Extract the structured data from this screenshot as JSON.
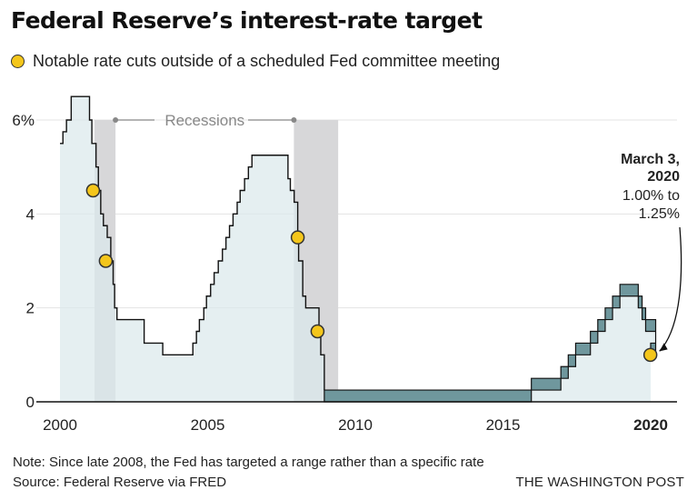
{
  "title": "Federal Reserve’s interest-rate target",
  "legend": {
    "label": "Notable rate cuts outside of a scheduled Fed committee meeting"
  },
  "note": "Note: Since late 2008, the Fed has targeted a range rather than a specific rate",
  "source": "Source: Federal Reserve via FRED",
  "credit": "THE WASHINGTON POST",
  "colors": {
    "area": "#dbe9ec",
    "range_band": "#6f979d",
    "recession": "#d7d7d9",
    "line": "#111111",
    "dot_fill": "#f4c61b",
    "grid": "#e3e3e3",
    "muted_text": "#888888"
  },
  "chart_data": {
    "type": "line",
    "title": "Federal Reserve’s interest-rate target",
    "xlim": [
      1999.8,
      2020.7
    ],
    "ylim": [
      0,
      6.5
    ],
    "x_ticks": [
      {
        "value": 2000,
        "label": "2000"
      },
      {
        "value": 2005,
        "label": "2005"
      },
      {
        "value": 2010,
        "label": "2010"
      },
      {
        "value": 2015,
        "label": "2015"
      },
      {
        "value": 2020,
        "label": "2020",
        "bold": true
      }
    ],
    "y_ticks": [
      {
        "value": 0,
        "label": "0"
      },
      {
        "value": 2,
        "label": "2"
      },
      {
        "value": 4,
        "label": "4"
      },
      {
        "value": 6,
        "label": "6%"
      }
    ],
    "grid": true,
    "recession_label": "Recessions",
    "recessions": [
      [
        2001.17,
        2001.88
      ],
      [
        2007.92,
        2009.42
      ]
    ],
    "single_rate": [
      [
        2000.0,
        5.5
      ],
      [
        2000.1,
        5.75
      ],
      [
        2000.22,
        6.0
      ],
      [
        2000.38,
        6.5
      ],
      [
        2001.0,
        6.0
      ],
      [
        2001.08,
        5.5
      ],
      [
        2001.22,
        5.0
      ],
      [
        2001.3,
        4.5
      ],
      [
        2001.38,
        4.0
      ],
      [
        2001.47,
        3.75
      ],
      [
        2001.6,
        3.5
      ],
      [
        2001.72,
        3.0
      ],
      [
        2001.8,
        2.5
      ],
      [
        2001.85,
        2.0
      ],
      [
        2001.93,
        1.75
      ],
      [
        2002.85,
        1.25
      ],
      [
        2003.48,
        1.0
      ],
      [
        2004.5,
        1.25
      ],
      [
        2004.62,
        1.5
      ],
      [
        2004.72,
        1.75
      ],
      [
        2004.87,
        2.0
      ],
      [
        2004.96,
        2.25
      ],
      [
        2005.1,
        2.5
      ],
      [
        2005.22,
        2.75
      ],
      [
        2005.36,
        3.0
      ],
      [
        2005.5,
        3.25
      ],
      [
        2005.62,
        3.5
      ],
      [
        2005.74,
        3.75
      ],
      [
        2005.86,
        4.0
      ],
      [
        2006.0,
        4.25
      ],
      [
        2006.1,
        4.5
      ],
      [
        2006.25,
        4.75
      ],
      [
        2006.38,
        5.0
      ],
      [
        2006.5,
        5.25
      ],
      [
        2007.72,
        4.75
      ],
      [
        2007.8,
        4.5
      ],
      [
        2007.93,
        4.25
      ],
      [
        2008.05,
        3.5
      ],
      [
        2008.08,
        3.0
      ],
      [
        2008.22,
        2.25
      ],
      [
        2008.32,
        2.0
      ],
      [
        2008.77,
        1.5
      ],
      [
        2008.83,
        1.0
      ],
      [
        2008.95,
        0.25
      ]
    ],
    "range_start": 2008.95,
    "target_range": [
      [
        2008.95,
        0.0,
        0.25
      ],
      [
        2015.96,
        0.25,
        0.5
      ],
      [
        2016.96,
        0.5,
        0.75
      ],
      [
        2017.21,
        0.75,
        1.0
      ],
      [
        2017.46,
        1.0,
        1.25
      ],
      [
        2017.96,
        1.25,
        1.5
      ],
      [
        2018.21,
        1.5,
        1.75
      ],
      [
        2018.46,
        1.75,
        2.0
      ],
      [
        2018.71,
        2.0,
        2.25
      ],
      [
        2018.96,
        2.25,
        2.5
      ],
      [
        2019.58,
        2.0,
        2.25
      ],
      [
        2019.71,
        1.75,
        2.0
      ],
      [
        2019.83,
        1.5,
        1.75
      ],
      [
        2020.17,
        1.0,
        1.25
      ]
    ],
    "end_x": 2020.0,
    "notable_cuts": [
      {
        "x": 2001.12,
        "y": 4.5
      },
      {
        "x": 2001.55,
        "y": 3.0
      },
      {
        "x": 2008.05,
        "y": 3.5
      },
      {
        "x": 2008.72,
        "y": 1.5
      },
      {
        "x": 2019.99,
        "y": 1.0
      }
    ],
    "annotation": {
      "date_line1": "March 3,",
      "date_line2": "2020",
      "detail_line1": "1.00% to",
      "detail_line2": "1.25%"
    }
  }
}
